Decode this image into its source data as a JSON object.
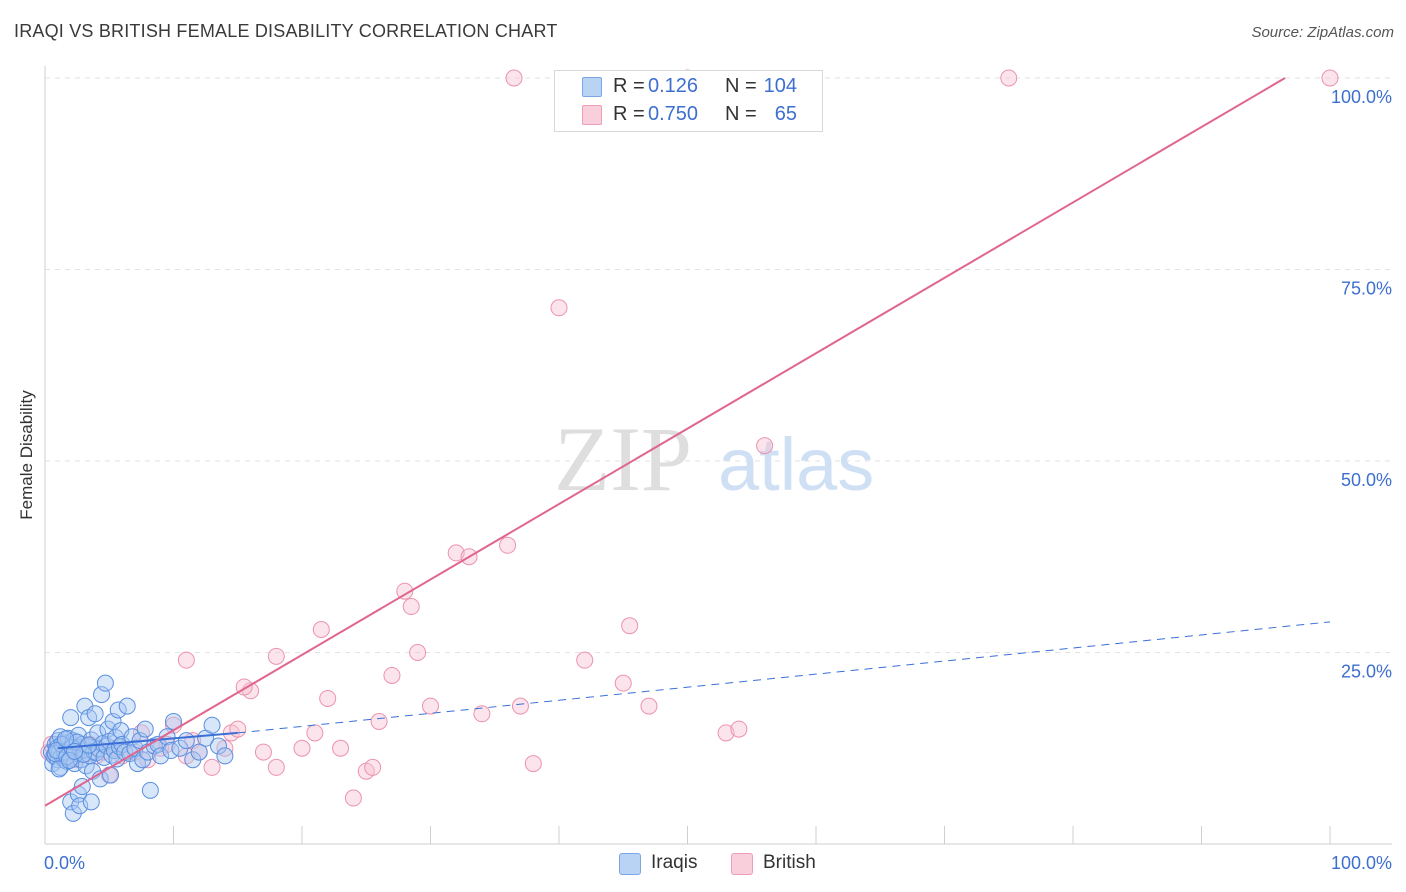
{
  "title": "IRAQI VS BRITISH FEMALE DISABILITY CORRELATION CHART",
  "source": "Source: ZipAtlas.com",
  "watermark": {
    "zip": "ZIP",
    "atlas": "atlas"
  },
  "legend": {
    "iraqis": {
      "r_label": "R =",
      "r_value": "0.126",
      "n_label": "N =",
      "n_value": "104"
    },
    "british": {
      "r_label": "R =",
      "r_value": "0.750",
      "n_label": "N =",
      "n_value": "65"
    }
  },
  "bottom_legend": {
    "iraqis": "Iraqis",
    "british": "British"
  },
  "colors": {
    "iraqis_fill": "#a9c8f2",
    "iraqis_stroke": "#5a8fe0",
    "iraqis_line": "#3a6fd8",
    "british_fill": "#f6c3d2",
    "british_stroke": "#ec93ad",
    "british_line": "#e0658f",
    "tick_label": "#3d6fd0"
  },
  "chart_data": {
    "type": "scatter",
    "title": "IRAQI VS BRITISH FEMALE DISABILITY CORRELATION CHART",
    "xlabel": "",
    "ylabel": "Female Disability",
    "xlim": [
      0,
      100
    ],
    "ylim": [
      0,
      100
    ],
    "x_tick_labels": [
      "0.0%",
      "100.0%"
    ],
    "y_ticks": [
      25,
      50,
      75,
      100
    ],
    "y_tick_labels": [
      "25.0%",
      "50.0%",
      "75.0%",
      "100.0%"
    ],
    "grid": true,
    "series": [
      {
        "name": "Iraqis",
        "points": [
          [
            0.5,
            12.0
          ],
          [
            0.6,
            10.5
          ],
          [
            0.7,
            11.5
          ],
          [
            0.8,
            13.0
          ],
          [
            0.9,
            12.5
          ],
          [
            1.0,
            11.0
          ],
          [
            1.0,
            13.5
          ],
          [
            1.1,
            12.0
          ],
          [
            1.2,
            10.0
          ],
          [
            1.2,
            14.0
          ],
          [
            1.3,
            11.5
          ],
          [
            1.4,
            12.8
          ],
          [
            1.5,
            13.2
          ],
          [
            1.5,
            11.0
          ],
          [
            1.6,
            12.2
          ],
          [
            1.7,
            10.8
          ],
          [
            1.8,
            13.8
          ],
          [
            1.9,
            12.4
          ],
          [
            2.0,
            11.2
          ],
          [
            2.0,
            16.5
          ],
          [
            2.1,
            12.9
          ],
          [
            2.2,
            13.5
          ],
          [
            2.3,
            10.5
          ],
          [
            2.4,
            12.0
          ],
          [
            2.5,
            11.8
          ],
          [
            2.6,
            14.2
          ],
          [
            2.7,
            12.6
          ],
          [
            2.8,
            11.0
          ],
          [
            2.9,
            13.0
          ],
          [
            3.0,
            12.3
          ],
          [
            3.1,
            18.0
          ],
          [
            3.2,
            10.2
          ],
          [
            3.3,
            12.7
          ],
          [
            3.4,
            16.5
          ],
          [
            3.5,
            11.5
          ],
          [
            3.6,
            13.6
          ],
          [
            3.7,
            9.5
          ],
          [
            3.8,
            12.1
          ],
          [
            3.9,
            17.0
          ],
          [
            4.0,
            11.9
          ],
          [
            4.1,
            14.5
          ],
          [
            4.2,
            12.4
          ],
          [
            4.3,
            8.5
          ],
          [
            4.4,
            19.5
          ],
          [
            4.5,
            13.1
          ],
          [
            4.6,
            11.3
          ],
          [
            4.7,
            21.0
          ],
          [
            4.8,
            12.8
          ],
          [
            4.9,
            15.0
          ],
          [
            5.0,
            13.4
          ],
          [
            5.1,
            9.0
          ],
          [
            5.2,
            11.6
          ],
          [
            5.3,
            16.0
          ],
          [
            5.4,
            12.2
          ],
          [
            5.5,
            13.9
          ],
          [
            5.6,
            11.1
          ],
          [
            5.7,
            17.5
          ],
          [
            5.8,
            12.7
          ],
          [
            5.9,
            14.8
          ],
          [
            6.0,
            13.0
          ],
          [
            6.2,
            12.0
          ],
          [
            6.4,
            18.0
          ],
          [
            6.6,
            11.8
          ],
          [
            6.8,
            14.0
          ],
          [
            7.0,
            12.5
          ],
          [
            7.2,
            10.5
          ],
          [
            7.4,
            13.5
          ],
          [
            7.6,
            11.0
          ],
          [
            7.8,
            15.0
          ],
          [
            8.0,
            12.0
          ],
          [
            8.2,
            7.0
          ],
          [
            8.5,
            12.8
          ],
          [
            8.8,
            13.0
          ],
          [
            9.0,
            11.5
          ],
          [
            9.5,
            14.0
          ],
          [
            9.8,
            12.2
          ],
          [
            10.0,
            16.0
          ],
          [
            10.5,
            12.5
          ],
          [
            11.0,
            13.5
          ],
          [
            11.5,
            11.0
          ],
          [
            12.0,
            12.0
          ],
          [
            12.5,
            13.8
          ],
          [
            13.0,
            15.5
          ],
          [
            13.5,
            12.8
          ],
          [
            14.0,
            11.5
          ],
          [
            2.0,
            5.5
          ],
          [
            2.2,
            4.0
          ],
          [
            2.6,
            6.5
          ],
          [
            2.9,
            7.5
          ],
          [
            2.7,
            5.0
          ],
          [
            3.6,
            5.5
          ],
          [
            1.1,
            9.8
          ],
          [
            1.5,
            12.0
          ],
          [
            0.8,
            11.8
          ],
          [
            1.3,
            13.0
          ],
          [
            0.9,
            12.2
          ],
          [
            1.7,
            11.4
          ],
          [
            2.1,
            12.6
          ],
          [
            2.5,
            13.3
          ],
          [
            3.0,
            11.7
          ],
          [
            3.4,
            12.9
          ],
          [
            1.9,
            10.9
          ],
          [
            1.6,
            13.7
          ],
          [
            2.3,
            12.1
          ]
        ]
      },
      {
        "name": "British",
        "points": [
          [
            0.3,
            12.0
          ],
          [
            0.5,
            13.0
          ],
          [
            0.8,
            11.5
          ],
          [
            1.2,
            12.5
          ],
          [
            1.5,
            13.0
          ],
          [
            2.0,
            12.0
          ],
          [
            2.5,
            11.0
          ],
          [
            3.0,
            12.5
          ],
          [
            3.5,
            13.0
          ],
          [
            4.0,
            11.5
          ],
          [
            4.5,
            12.0
          ],
          [
            5.0,
            9.0
          ],
          [
            5.5,
            12.5
          ],
          [
            6.0,
            11.5
          ],
          [
            7.0,
            12.0
          ],
          [
            7.5,
            14.5
          ],
          [
            8.0,
            11.0
          ],
          [
            9.0,
            12.5
          ],
          [
            9.5,
            13.0
          ],
          [
            10.0,
            15.5
          ],
          [
            11.0,
            11.5
          ],
          [
            11.5,
            13.5
          ],
          [
            12.0,
            12.0
          ],
          [
            13.0,
            10.0
          ],
          [
            14.0,
            12.5
          ],
          [
            14.5,
            14.5
          ],
          [
            15.0,
            15.0
          ],
          [
            16.0,
            20.0
          ],
          [
            17.0,
            12.0
          ],
          [
            18.0,
            10.0
          ],
          [
            20.0,
            12.5
          ],
          [
            21.0,
            14.5
          ],
          [
            22.0,
            19.0
          ],
          [
            23.0,
            12.5
          ],
          [
            24.0,
            6.0
          ],
          [
            25.0,
            9.5
          ],
          [
            25.5,
            10.0
          ],
          [
            26.0,
            16.0
          ],
          [
            27.0,
            22.0
          ],
          [
            28.0,
            33.0
          ],
          [
            28.5,
            31.0
          ],
          [
            29.0,
            25.0
          ],
          [
            30.0,
            18.0
          ],
          [
            32.0,
            38.0
          ],
          [
            33.0,
            37.5
          ],
          [
            34.0,
            17.0
          ],
          [
            36.0,
            39.0
          ],
          [
            37.0,
            18.0
          ],
          [
            38.0,
            10.5
          ],
          [
            42.0,
            24.0
          ],
          [
            45.0,
            21.0
          ],
          [
            45.5,
            28.5
          ],
          [
            47.0,
            18.0
          ],
          [
            53.0,
            14.5
          ],
          [
            54.0,
            15.0
          ],
          [
            56.0,
            52.0
          ],
          [
            36.5,
            100.0
          ],
          [
            50.0,
            100.0
          ],
          [
            75.0,
            100.0
          ],
          [
            100.0,
            100.0
          ],
          [
            40.0,
            70.0
          ],
          [
            18.0,
            24.5
          ],
          [
            11.0,
            24.0
          ],
          [
            15.5,
            20.5
          ],
          [
            21.5,
            28.0
          ]
        ]
      }
    ],
    "trend_lines": [
      {
        "series": "Iraqis",
        "type": "solid",
        "x": [
          1,
          15
        ],
        "y": [
          12.5,
          14.5
        ]
      },
      {
        "series": "Iraqis",
        "type": "dashed",
        "x": [
          15,
          100
        ],
        "y": [
          14.5,
          29.0
        ]
      },
      {
        "series": "British",
        "type": "solid",
        "x": [
          0,
          96.5
        ],
        "y": [
          5.0,
          100.0
        ]
      }
    ]
  }
}
